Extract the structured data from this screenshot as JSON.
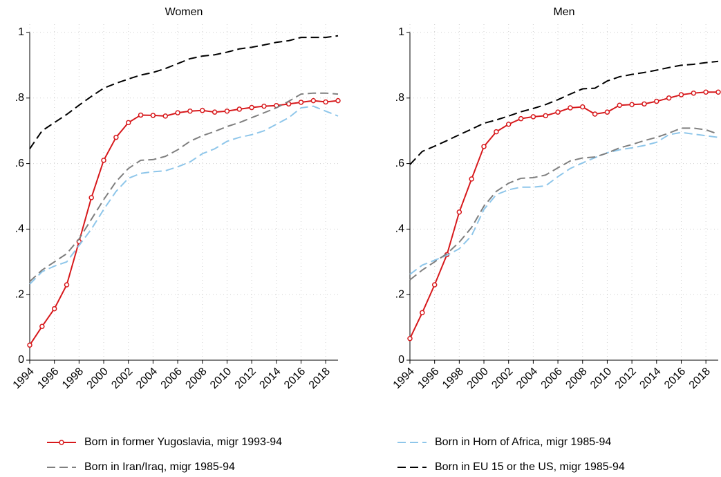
{
  "chart_data": [
    {
      "type": "line",
      "title": "Women",
      "x": [
        1994,
        1995,
        1996,
        1997,
        1998,
        1999,
        2000,
        2001,
        2002,
        2003,
        2004,
        2005,
        2006,
        2007,
        2008,
        2009,
        2010,
        2011,
        2012,
        2013,
        2014,
        2015,
        2016,
        2017,
        2018,
        2019
      ],
      "xlim": [
        1994,
        2019
      ],
      "xticks": [
        1994,
        1996,
        1998,
        2000,
        2002,
        2004,
        2006,
        2008,
        2010,
        2012,
        2014,
        2016,
        2018
      ],
      "ylim": [
        0,
        1
      ],
      "yticks": [
        0,
        {
          "value": 0.2,
          "label": ".2"
        },
        {
          "value": 0.4,
          "label": ".4"
        },
        {
          "value": 0.6,
          "label": ".6"
        },
        {
          "value": 0.8,
          "label": ".8"
        },
        1
      ],
      "grid": true,
      "series": [
        {
          "name": "Born in former Yugoslavia, migr 1993-94",
          "color": "#d7191c",
          "style": "solid-marker",
          "values": [
            0.046,
            0.103,
            0.157,
            0.23,
            0.362,
            0.496,
            0.61,
            0.68,
            0.725,
            0.748,
            0.747,
            0.745,
            0.755,
            0.76,
            0.762,
            0.757,
            0.76,
            0.766,
            0.771,
            0.775,
            0.777,
            0.782,
            0.787,
            0.792,
            0.788,
            0.792
          ]
        },
        {
          "name": "Born in Horn of Africa, migr 1985-94",
          "color": "#8ec6ea",
          "style": "dashed",
          "values": [
            0.232,
            0.27,
            0.287,
            0.3,
            0.35,
            0.4,
            0.46,
            0.515,
            0.555,
            0.57,
            0.575,
            0.578,
            0.59,
            0.605,
            0.63,
            0.645,
            0.668,
            0.68,
            0.688,
            0.7,
            0.72,
            0.74,
            0.77,
            0.775,
            0.76,
            0.745
          ]
        },
        {
          "name": "Born in Iran/Iraq, migr 1985-94",
          "color": "#7f7f7f",
          "style": "dashed",
          "values": [
            0.24,
            0.275,
            0.3,
            0.325,
            0.37,
            0.43,
            0.49,
            0.545,
            0.585,
            0.61,
            0.612,
            0.622,
            0.642,
            0.668,
            0.685,
            0.698,
            0.713,
            0.725,
            0.74,
            0.755,
            0.77,
            0.79,
            0.812,
            0.815,
            0.815,
            0.812
          ]
        },
        {
          "name": "Born in EU 15 or the US, migr 1985-94",
          "color": "#000000",
          "style": "dashed",
          "values": [
            0.645,
            0.7,
            0.725,
            0.75,
            0.778,
            0.805,
            0.83,
            0.845,
            0.858,
            0.87,
            0.878,
            0.89,
            0.905,
            0.92,
            0.928,
            0.932,
            0.94,
            0.95,
            0.955,
            0.962,
            0.97,
            0.975,
            0.985,
            0.985,
            0.985,
            0.99
          ]
        }
      ]
    },
    {
      "type": "line",
      "title": "Men",
      "x": [
        1994,
        1995,
        1996,
        1997,
        1998,
        1999,
        2000,
        2001,
        2002,
        2003,
        2004,
        2005,
        2006,
        2007,
        2008,
        2009,
        2010,
        2011,
        2012,
        2013,
        2014,
        2015,
        2016,
        2017,
        2018,
        2019
      ],
      "xlim": [
        1994,
        2019
      ],
      "xticks": [
        1994,
        1996,
        1998,
        2000,
        2002,
        2004,
        2006,
        2008,
        2010,
        2012,
        2014,
        2016,
        2018
      ],
      "ylim": [
        0,
        1
      ],
      "yticks": [
        0,
        {
          "value": 0.2,
          "label": ".2"
        },
        {
          "value": 0.4,
          "label": ".4"
        },
        {
          "value": 0.6,
          "label": ".6"
        },
        {
          "value": 0.8,
          "label": ".8"
        },
        1
      ],
      "grid": true,
      "series": [
        {
          "color": "#d7191c",
          "style": "solid-marker",
          "values": [
            0.066,
            0.145,
            0.23,
            0.322,
            0.452,
            0.553,
            0.652,
            0.697,
            0.72,
            0.737,
            0.743,
            0.746,
            0.757,
            0.77,
            0.773,
            0.751,
            0.757,
            0.778,
            0.78,
            0.782,
            0.79,
            0.8,
            0.81,
            0.815,
            0.818,
            0.818
          ]
        },
        {
          "color": "#8ec6ea",
          "style": "dashed",
          "values": [
            0.262,
            0.29,
            0.305,
            0.32,
            0.34,
            0.38,
            0.46,
            0.505,
            0.52,
            0.528,
            0.528,
            0.532,
            0.56,
            0.585,
            0.602,
            0.618,
            0.633,
            0.642,
            0.648,
            0.655,
            0.665,
            0.688,
            0.695,
            0.69,
            0.685,
            0.68
          ]
        },
        {
          "color": "#7f7f7f",
          "style": "dashed",
          "values": [
            0.245,
            0.275,
            0.3,
            0.325,
            0.36,
            0.405,
            0.47,
            0.515,
            0.54,
            0.555,
            0.557,
            0.565,
            0.587,
            0.608,
            0.617,
            0.62,
            0.632,
            0.648,
            0.658,
            0.67,
            0.68,
            0.693,
            0.708,
            0.708,
            0.703,
            0.69
          ]
        },
        {
          "color": "#000000",
          "style": "dashed",
          "values": [
            0.597,
            0.637,
            0.653,
            0.67,
            0.688,
            0.705,
            0.723,
            0.733,
            0.745,
            0.758,
            0.768,
            0.78,
            0.795,
            0.812,
            0.828,
            0.83,
            0.852,
            0.865,
            0.872,
            0.878,
            0.885,
            0.893,
            0.9,
            0.903,
            0.908,
            0.912
          ]
        }
      ]
    }
  ]
}
